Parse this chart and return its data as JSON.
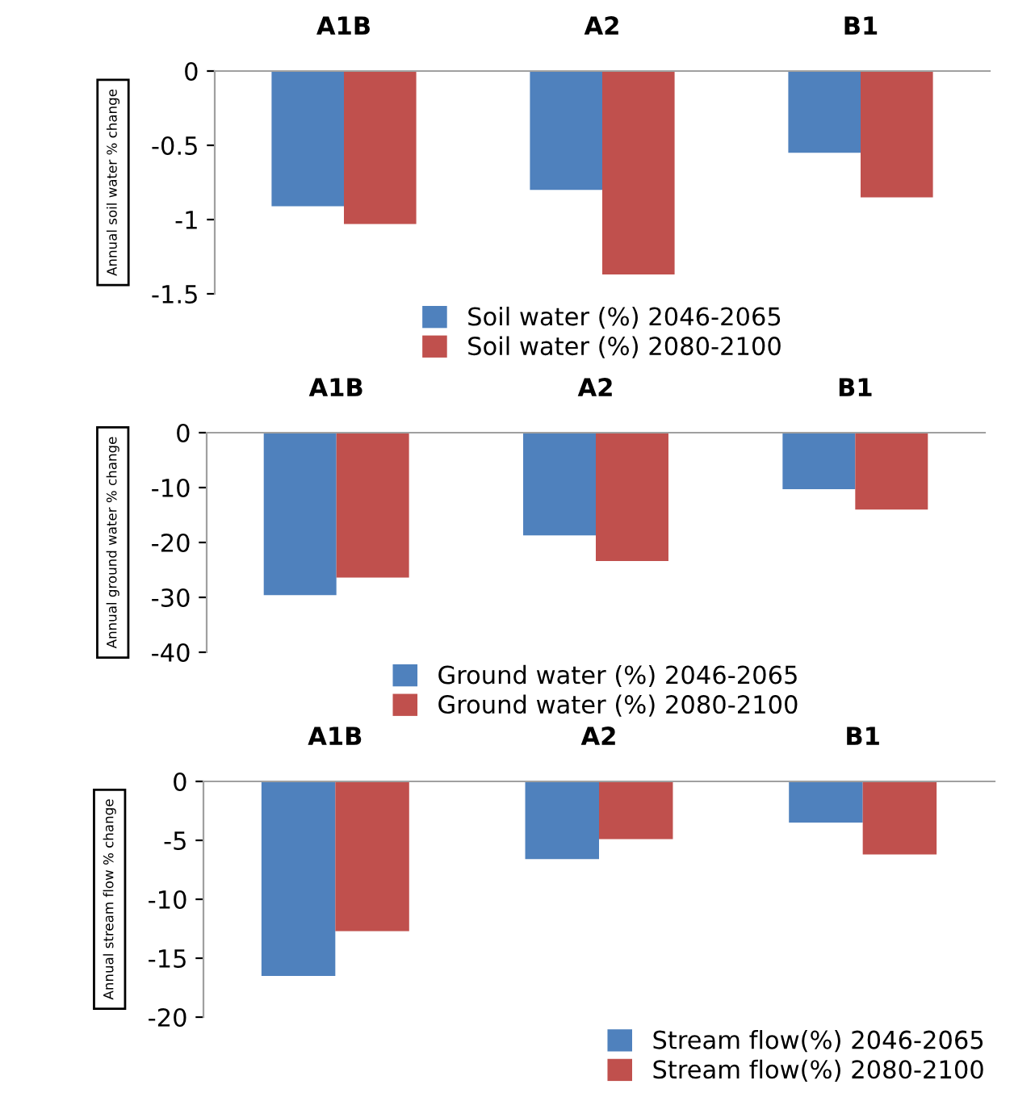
{
  "chart_data": [
    {
      "type": "bar",
      "categories": [
        "A1B",
        "A2",
        "B1"
      ],
      "ylabel": "Annual soil water % change",
      "ylim": [
        -1.5,
        0
      ],
      "yticks": [
        0,
        -0.5,
        -1,
        -1.5
      ],
      "grid": false,
      "legend": "bottom",
      "series": [
        {
          "name": "Soil water (%) 2046-2065",
          "color": "#4f81bd",
          "values": [
            -0.91,
            -0.8,
            -0.55
          ]
        },
        {
          "name": "Soil water (%) 2080-2100",
          "color": "#c0504d",
          "values": [
            -1.03,
            -1.37,
            -0.85
          ]
        }
      ]
    },
    {
      "type": "bar",
      "categories": [
        "A1B",
        "A2",
        "B1"
      ],
      "ylabel": "Annual ground water % change",
      "ylim": [
        -40,
        0
      ],
      "yticks": [
        0,
        -10,
        -20,
        -30,
        -40
      ],
      "grid": false,
      "legend": "bottom",
      "series": [
        {
          "name": "Ground water (%) 2046-2065",
          "color": "#4f81bd",
          "values": [
            -29.6,
            -18.7,
            -10.3
          ]
        },
        {
          "name": "Ground water (%) 2080-2100",
          "color": "#c0504d",
          "values": [
            -26.4,
            -23.4,
            -14.0
          ]
        }
      ]
    },
    {
      "type": "bar",
      "categories": [
        "A1B",
        "A2",
        "B1"
      ],
      "ylabel": "Annual stream flow % change",
      "ylim": [
        -20,
        0
      ],
      "yticks": [
        0,
        -5,
        -10,
        -15,
        -20
      ],
      "grid": false,
      "legend": "bottom right",
      "series": [
        {
          "name": "Stream flow(%) 2046-2065",
          "color": "#4f81bd",
          "values": [
            -16.5,
            -6.6,
            -3.5
          ]
        },
        {
          "name": "Stream flow(%) 2080-2100",
          "color": "#c0504d",
          "values": [
            -12.7,
            -4.9,
            -6.2
          ]
        }
      ]
    }
  ]
}
